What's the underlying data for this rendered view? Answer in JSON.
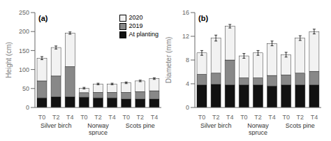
{
  "chart_data": [
    {
      "type": "bar",
      "stacked": true,
      "title": "(a)",
      "ylabel": "Height (cm)",
      "categories": [
        "T0",
        "T2",
        "T4",
        "T0",
        "T2",
        "T4",
        "T0",
        "T2",
        "T4"
      ],
      "annotations": [
        "Silver birch",
        "Norway\nspruce",
        "Scots pine"
      ],
      "series": [
        {
          "name": "At planting",
          "color": "#111111",
          "values": [
            25,
            28,
            28,
            27,
            25,
            25,
            22,
            22,
            22
          ]
        },
        {
          "name": "2019",
          "color": "#888888",
          "values": [
            45,
            55,
            80,
            12,
            15,
            15,
            18,
            20,
            22
          ]
        },
        {
          "name": "2020",
          "color": "#f2f2f2",
          "values": [
            60,
            75,
            88,
            12,
            22,
            22,
            25,
            28,
            32
          ]
        }
      ],
      "errors": [
        4,
        4,
        3,
        2,
        2,
        2,
        2,
        2,
        2
      ],
      "ylim": [
        0,
        250
      ],
      "yticks": [
        0,
        50,
        100,
        150,
        200,
        250
      ],
      "legend": "upper right"
    },
    {
      "type": "bar",
      "stacked": true,
      "title": "(b)",
      "ylabel": "Diameter (mm)",
      "categories": [
        "T0",
        "T2",
        "T4",
        "T0",
        "T2",
        "T4",
        "T0",
        "T2",
        "T4"
      ],
      "annotations": [
        "Silver birch",
        "Norway\nspruce",
        "Scots pine"
      ],
      "series": [
        {
          "name": "At planting",
          "color": "#111111",
          "values": [
            3.8,
            3.9,
            3.8,
            3.8,
            3.8,
            3.6,
            3.8,
            3.8,
            3.8
          ]
        },
        {
          "name": "2019",
          "color": "#888888",
          "values": [
            1.8,
            1.9,
            4.2,
            1.2,
            1.2,
            1.8,
            1.7,
            2.0,
            2.3
          ]
        },
        {
          "name": "2020",
          "color": "#f2f2f2",
          "values": [
            3.6,
            5.9,
            5.7,
            3.7,
            4.2,
            5.4,
            3.4,
            5.9,
            6.7
          ]
        }
      ],
      "errors": [
        0.4,
        0.5,
        0.3,
        0.4,
        0.4,
        0.4,
        0.4,
        0.4,
        0.4
      ],
      "ylim": [
        0,
        16
      ],
      "yticks": [
        0,
        4,
        8,
        12,
        16
      ]
    }
  ]
}
